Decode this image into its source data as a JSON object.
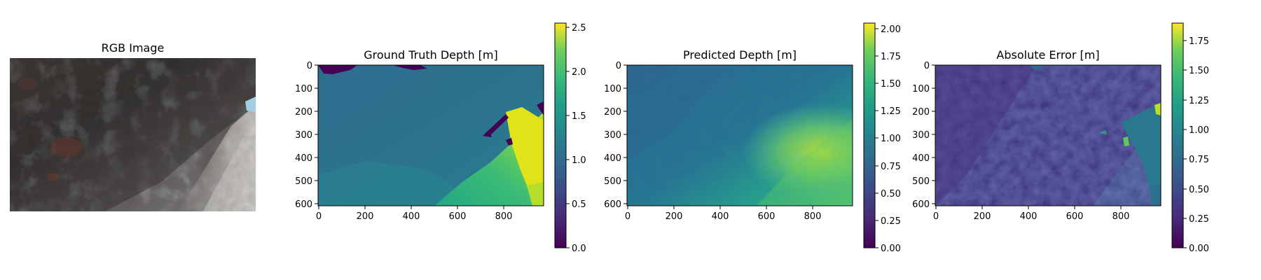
{
  "panels": [
    {
      "id": "rgb",
      "type": "image",
      "title": "RGB Image"
    },
    {
      "id": "gt",
      "type": "heatmap",
      "title": "Ground Truth Depth [m]",
      "colormap": "viridis",
      "x_ticks": [
        "0",
        "200",
        "400",
        "600",
        "800"
      ],
      "y_ticks": [
        "0",
        "100",
        "200",
        "300",
        "400",
        "500",
        "600"
      ],
      "xlim": [
        0,
        976
      ],
      "ylim": [
        0,
        610
      ],
      "colorbar": {
        "min": 0.0,
        "max": 2.55,
        "ticks": [
          "0.0",
          "0.5",
          "1.0",
          "1.5",
          "2.0",
          "2.5"
        ]
      }
    },
    {
      "id": "pred",
      "type": "heatmap",
      "title": "Predicted Depth [m]",
      "colormap": "viridis",
      "x_ticks": [
        "0",
        "200",
        "400",
        "600",
        "800"
      ],
      "y_ticks": [
        "0",
        "100",
        "200",
        "300",
        "400",
        "500",
        "600"
      ],
      "xlim": [
        0,
        976
      ],
      "ylim": [
        0,
        610
      ],
      "colorbar": {
        "min": 0.0,
        "max": 2.05,
        "ticks": [
          "0.00",
          "0.25",
          "0.50",
          "0.75",
          "1.00",
          "1.25",
          "1.50",
          "1.75",
          "2.00"
        ]
      }
    },
    {
      "id": "err",
      "type": "heatmap",
      "title": "Absolute Error [m]",
      "colormap": "viridis",
      "x_ticks": [
        "0",
        "200",
        "400",
        "600",
        "800"
      ],
      "y_ticks": [
        "0",
        "100",
        "200",
        "300",
        "400",
        "500",
        "600"
      ],
      "xlim": [
        0,
        976
      ],
      "ylim": [
        0,
        610
      ],
      "colorbar": {
        "min": 0.0,
        "max": 1.9,
        "ticks": [
          "0.00",
          "0.25",
          "0.50",
          "0.75",
          "1.00",
          "1.25",
          "1.50",
          "1.75"
        ]
      }
    }
  ],
  "chart_data": [
    {
      "type": "heatmap",
      "title": "Ground Truth Depth [m]",
      "xlim": [
        0,
        976
      ],
      "ylim": [
        0,
        610
      ],
      "value_range": [
        0.0,
        2.55
      ],
      "grid": false
    },
    {
      "type": "heatmap",
      "title": "Predicted Depth [m]",
      "xlim": [
        0,
        976
      ],
      "ylim": [
        0,
        610
      ],
      "value_range": [
        0.0,
        2.05
      ],
      "grid": false
    },
    {
      "type": "heatmap",
      "title": "Absolute Error [m]",
      "xlim": [
        0,
        976
      ],
      "ylim": [
        0,
        610
      ],
      "value_range": [
        0.0,
        1.9
      ],
      "grid": false
    }
  ]
}
